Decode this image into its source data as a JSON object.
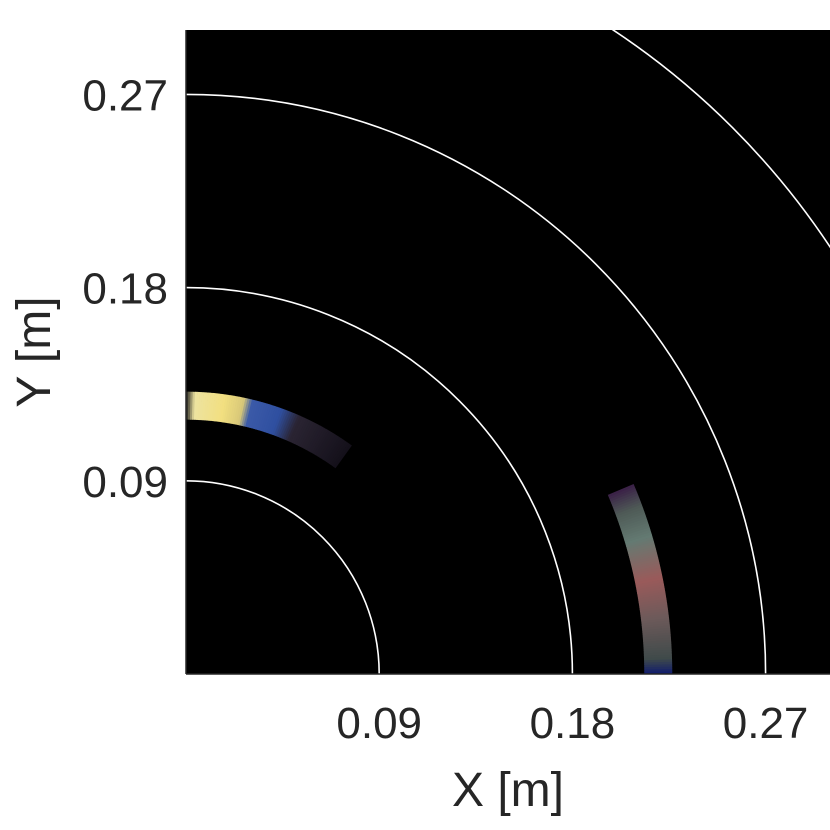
{
  "chart_data": {
    "type": "scatter",
    "title": "",
    "xlabel": "X [m]",
    "ylabel": "Y [m]",
    "xlim": [
      0,
      0.3
    ],
    "ylim": [
      0,
      0.3
    ],
    "xticks": [
      0.09,
      0.18,
      0.27
    ],
    "yticks": [
      0.09,
      0.18,
      0.27
    ],
    "xtick_labels": [
      "0.09",
      "0.18",
      "0.27"
    ],
    "ytick_labels": [
      "0.09",
      "0.18",
      "0.27"
    ],
    "grid": false,
    "background_color": "#000000",
    "range_rings_m": [
      0.09,
      0.18,
      0.27,
      0.36
    ],
    "ring_color": "#ffffff",
    "series": [
      {
        "arc_radius_m": 0.125,
        "angle_start_deg": 90,
        "angle_end_deg": 54,
        "stops": [
          {
            "t": 0.0,
            "color": "#1a1a1a"
          },
          {
            "t": 0.05,
            "color": "#ede3a0"
          },
          {
            "t": 0.22,
            "color": "#f2df80"
          },
          {
            "t": 0.33,
            "color": "#d8c878"
          },
          {
            "t": 0.38,
            "color": "#3b5aa8"
          },
          {
            "t": 0.55,
            "color": "#2f4fa0"
          },
          {
            "t": 0.66,
            "color": "#2a2432"
          },
          {
            "t": 1.0,
            "color": "#14101a"
          }
        ]
      },
      {
        "arc_radius_m": 0.22,
        "angle_start_deg": 0,
        "angle_end_deg": 23,
        "stops": [
          {
            "t": 0.0,
            "color": "#0f1a6e"
          },
          {
            "t": 0.08,
            "color": "#3f4a4a"
          },
          {
            "t": 0.3,
            "color": "#6e5a5a"
          },
          {
            "t": 0.5,
            "color": "#9a5a5a"
          },
          {
            "t": 0.72,
            "color": "#647a72"
          },
          {
            "t": 0.88,
            "color": "#4e5a56"
          },
          {
            "t": 1.0,
            "color": "#3a1f46"
          }
        ]
      }
    ]
  }
}
